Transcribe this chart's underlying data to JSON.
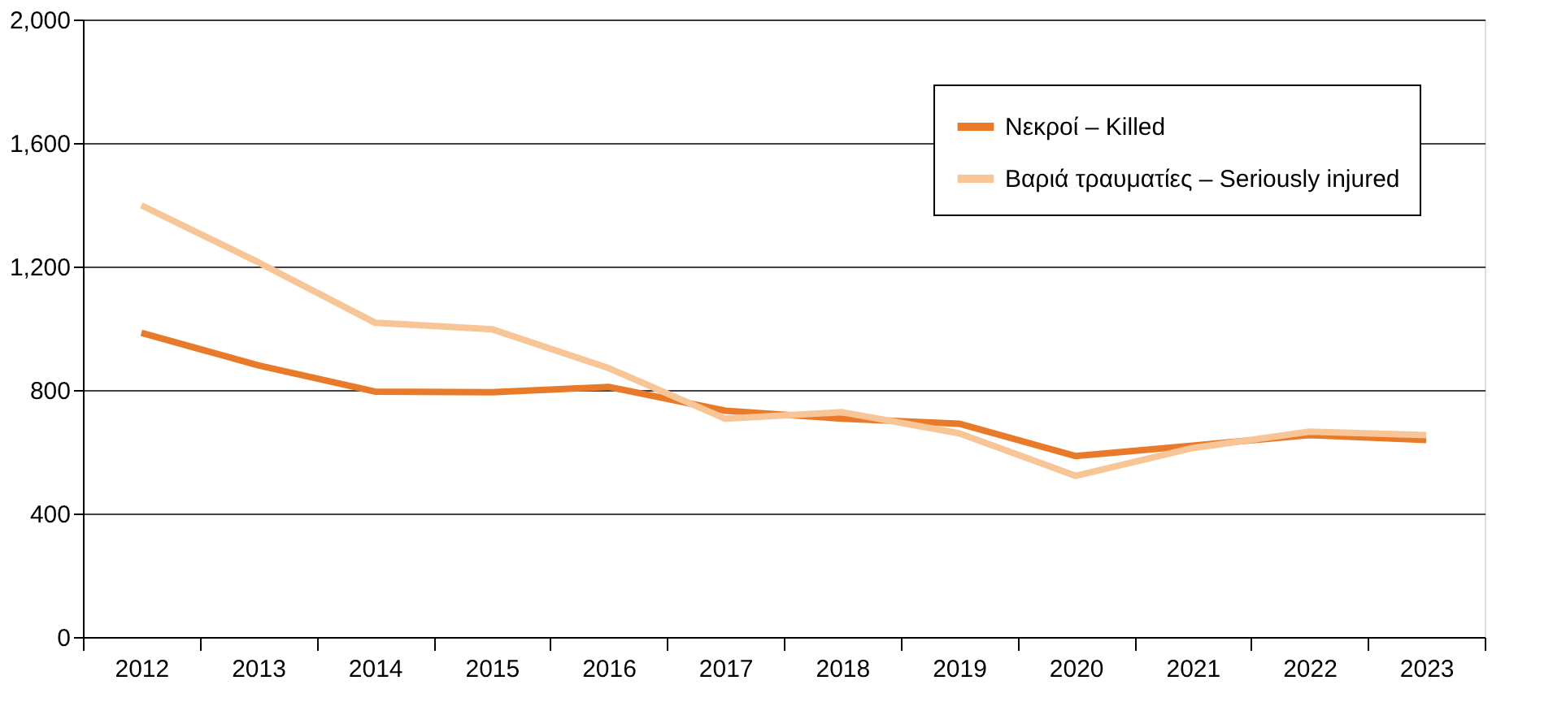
{
  "chart_data": {
    "type": "line",
    "categories": [
      "2012",
      "2013",
      "2014",
      "2015",
      "2016",
      "2017",
      "2018",
      "2019",
      "2020",
      "2021",
      "2022",
      "2023"
    ],
    "series": [
      {
        "name": "Νεκροί – Killed",
        "color": "#e87a2a",
        "values": [
          985,
          880,
          795,
          793,
          810,
          733,
          707,
          691,
          586,
          620,
          654,
          638
        ]
      },
      {
        "name": "Βαριά τραυματίες – Seriously injured",
        "color": "#f7c596",
        "values": [
          1398,
          1214,
          1018,
          997,
          871,
          707,
          728,
          660,
          522,
          612,
          665,
          654
        ]
      }
    ],
    "ylim": [
      0,
      2000
    ],
    "yticks": [
      0,
      400,
      800,
      {
        "value": 1200,
        "label": "1,200"
      },
      {
        "value": 1600,
        "label": "1,600"
      },
      {
        "value": 2000,
        "label": "2,000"
      }
    ],
    "grid": "y",
    "legend": "top right",
    "marker": "none",
    "line_style": "solid"
  }
}
